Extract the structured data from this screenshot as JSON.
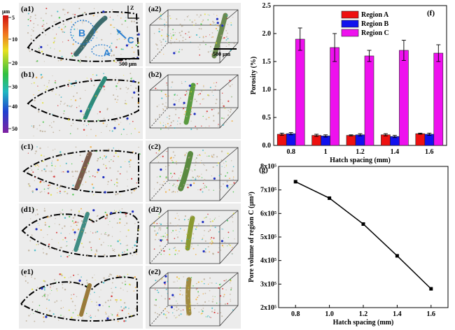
{
  "colorbar": {
    "unit": "μm",
    "ticks": [
      "5",
      "10",
      "20",
      "30",
      "40",
      "50"
    ],
    "colors": [
      "#d01010",
      "#f0a020",
      "#e0e020",
      "#30c030",
      "#20b0c0",
      "#2040d0",
      "#8020a0"
    ]
  },
  "panels": {
    "left": [
      "(a1)",
      "(b1)",
      "(c1)",
      "(d1)",
      "(e1)"
    ],
    "right": [
      "(a2)",
      "(b2)",
      "(c2)",
      "(d2)",
      "(e2)"
    ],
    "region_labels": [
      "B",
      "A",
      "C"
    ],
    "scale_bar": "500 μm",
    "scale_bar_3d": "500 μm",
    "axis_label": "Z"
  },
  "chart_data": [
    {
      "panel": "(f)",
      "type": "bar",
      "categories": [
        "0.8",
        "1",
        "1.2",
        "1.4",
        "1.6"
      ],
      "xlabel": "Hatch spacing (mm)",
      "ylabel": "Porosity (%)",
      "ylim": [
        0,
        2.5
      ],
      "yticks": [
        "0.0",
        "0.5",
        "1.0",
        "1.5",
        "2.0",
        "2.5"
      ],
      "legend": "top-left",
      "series": [
        {
          "name": "Region A",
          "color": "#ee1111",
          "values": [
            0.2,
            0.18,
            0.18,
            0.19,
            0.21
          ],
          "errors": [
            0.02,
            0.02,
            0.01,
            0.02,
            0.01
          ]
        },
        {
          "name": "Region B",
          "color": "#1111ee",
          "values": [
            0.21,
            0.17,
            0.19,
            0.16,
            0.2
          ],
          "errors": [
            0.02,
            0.02,
            0.02,
            0.02,
            0.02
          ]
        },
        {
          "name": "Region C",
          "color": "#ee11ee",
          "values": [
            1.9,
            1.75,
            1.6,
            1.7,
            1.65
          ],
          "errors": [
            0.2,
            0.25,
            0.1,
            0.18,
            0.15
          ]
        }
      ]
    },
    {
      "panel": "(g)",
      "type": "line",
      "x": [
        0.8,
        1.0,
        1.2,
        1.4,
        1.6
      ],
      "y": [
        735000,
        665000,
        555000,
        420000,
        280000
      ],
      "xlabel": "Hatch spacing (mm)",
      "ylabel": "Pore volume of region C (μm³)",
      "xlim": [
        0.7,
        1.7
      ],
      "ylim": [
        200000,
        800000
      ],
      "xticks": [
        "0.8",
        "1.0",
        "1.2",
        "1.4",
        "1.6"
      ],
      "yticks": [
        "2x10⁵",
        "3x10⁵",
        "4x10⁵",
        "5x10⁵",
        "6x10⁵",
        "7x10⁵",
        "8x10⁵"
      ]
    }
  ]
}
